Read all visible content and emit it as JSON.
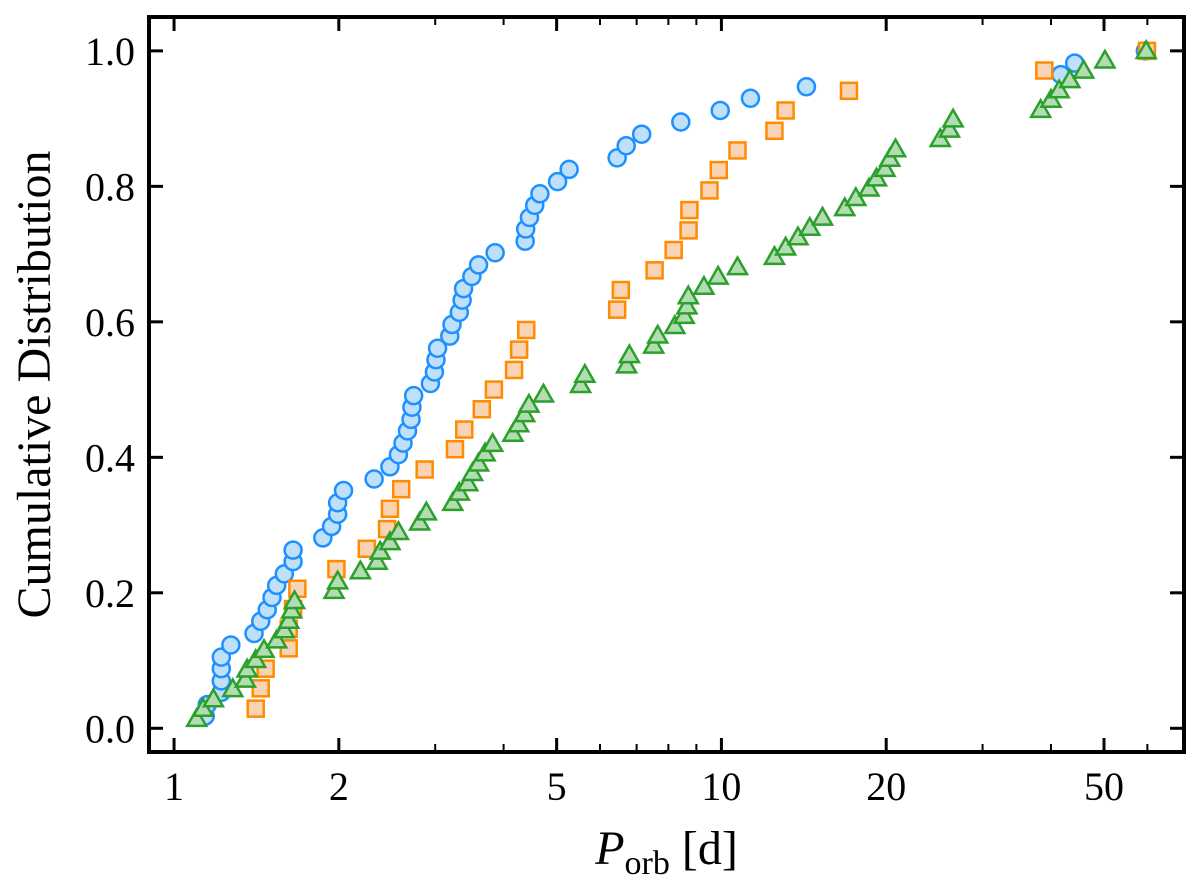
{
  "chart_data": {
    "type": "scatter",
    "title": "",
    "xlabel_main": "P",
    "xlabel_sub": "orb",
    "xlabel_unit": " [d]",
    "ylabel": "Cumulative Distribution",
    "xscale": "log",
    "xlim": [
      0.9,
      70
    ],
    "ylim": [
      -0.035,
      1.05
    ],
    "x_ticks": [
      1,
      2,
      5,
      10,
      20,
      50
    ],
    "x_tick_labels": [
      "1",
      "2",
      "5",
      "10",
      "20",
      "50"
    ],
    "y_ticks": [
      0.0,
      0.2,
      0.4,
      0.6,
      0.8,
      1.0
    ],
    "y_tick_labels": [
      "0.0",
      "0.2",
      "0.4",
      "0.6",
      "0.8",
      "1.0"
    ],
    "grid": false,
    "series": [
      {
        "name": "circles",
        "marker": "circle",
        "edge_color": "#1e90ff",
        "face_color": "#bfe0fa",
        "x": [
          1.14,
          1.15,
          1.22,
          1.22,
          1.22,
          1.22,
          1.27,
          1.4,
          1.44,
          1.48,
          1.51,
          1.54,
          1.59,
          1.65,
          1.65,
          1.87,
          1.94,
          1.99,
          1.99,
          2.04,
          2.32,
          2.48,
          2.57,
          2.62,
          2.67,
          2.71,
          2.72,
          2.74,
          2.94,
          2.99,
          3.01,
          3.03,
          3.19,
          3.22,
          3.32,
          3.36,
          3.38,
          3.5,
          3.6,
          3.86,
          4.38,
          4.39,
          4.46,
          4.56,
          4.66,
          5.02,
          5.27,
          6.45,
          6.7,
          7.15,
          8.43,
          9.95,
          11.3,
          14.3,
          41.7,
          44.2,
          59.5
        ],
        "y": [
          0.018,
          0.035,
          0.053,
          0.07,
          0.088,
          0.105,
          0.123,
          0.14,
          0.158,
          0.175,
          0.193,
          0.211,
          0.228,
          0.246,
          0.263,
          0.281,
          0.298,
          0.316,
          0.333,
          0.351,
          0.368,
          0.386,
          0.404,
          0.421,
          0.439,
          0.456,
          0.474,
          0.491,
          0.509,
          0.526,
          0.544,
          0.561,
          0.579,
          0.596,
          0.614,
          0.632,
          0.649,
          0.667,
          0.684,
          0.702,
          0.719,
          0.737,
          0.754,
          0.772,
          0.789,
          0.807,
          0.825,
          0.842,
          0.86,
          0.877,
          0.895,
          0.912,
          0.93,
          0.947,
          0.965,
          0.982,
          1.0
        ]
      },
      {
        "name": "squares",
        "marker": "square",
        "edge_color": "#ff8c00",
        "face_color": "#fad3b4",
        "x": [
          1.41,
          1.44,
          1.47,
          1.62,
          1.62,
          1.65,
          1.68,
          1.98,
          2.25,
          2.45,
          2.48,
          2.6,
          2.87,
          3.26,
          3.39,
          3.65,
          3.84,
          4.18,
          4.27,
          4.4,
          6.45,
          6.55,
          7.55,
          8.18,
          8.71,
          8.74,
          9.51,
          9.89,
          10.7,
          12.5,
          13.1,
          17.1,
          38.9,
          59.9
        ],
        "y": [
          0.029,
          0.059,
          0.088,
          0.118,
          0.147,
          0.176,
          0.206,
          0.235,
          0.265,
          0.294,
          0.324,
          0.353,
          0.382,
          0.412,
          0.441,
          0.471,
          0.5,
          0.529,
          0.559,
          0.588,
          0.618,
          0.647,
          0.676,
          0.706,
          0.735,
          0.765,
          0.794,
          0.824,
          0.853,
          0.882,
          0.912,
          0.941,
          0.971,
          1.0
        ]
      },
      {
        "name": "triangles",
        "marker": "triangle",
        "edge_color": "#2ca02c",
        "face_color": "#b3dcb3",
        "x": [
          1.1,
          1.13,
          1.18,
          1.28,
          1.35,
          1.36,
          1.41,
          1.46,
          1.54,
          1.59,
          1.62,
          1.64,
          1.66,
          1.96,
          1.99,
          2.19,
          2.35,
          2.38,
          2.48,
          2.57,
          2.81,
          2.89,
          3.23,
          3.32,
          3.44,
          3.51,
          3.6,
          3.7,
          3.82,
          4.16,
          4.26,
          4.37,
          4.45,
          4.73,
          5.53,
          5.63,
          6.71,
          6.79,
          7.52,
          7.65,
          8.22,
          8.55,
          8.65,
          8.7,
          9.29,
          9.86,
          10.7,
          12.5,
          13.1,
          13.8,
          14.5,
          15.3,
          16.8,
          17.6,
          18.6,
          19.2,
          19.9,
          20.3,
          20.8,
          25.1,
          26.1,
          26.5,
          38.3,
          40.0,
          41.4,
          43.3,
          45.9,
          50.2,
          59.7
        ],
        "y": [
          0.014,
          0.029,
          0.043,
          0.058,
          0.072,
          0.087,
          0.101,
          0.116,
          0.13,
          0.145,
          0.159,
          0.174,
          0.188,
          0.203,
          0.217,
          0.232,
          0.246,
          0.261,
          0.275,
          0.29,
          0.304,
          0.319,
          0.333,
          0.348,
          0.362,
          0.377,
          0.391,
          0.406,
          0.42,
          0.435,
          0.449,
          0.464,
          0.478,
          0.493,
          0.507,
          0.522,
          0.536,
          0.551,
          0.565,
          0.58,
          0.594,
          0.609,
          0.623,
          0.638,
          0.652,
          0.667,
          0.681,
          0.696,
          0.71,
          0.725,
          0.739,
          0.754,
          0.768,
          0.783,
          0.797,
          0.812,
          0.826,
          0.841,
          0.855,
          0.87,
          0.884,
          0.899,
          0.913,
          0.928,
          0.942,
          0.957,
          0.971,
          0.986,
          1.0
        ]
      }
    ]
  }
}
